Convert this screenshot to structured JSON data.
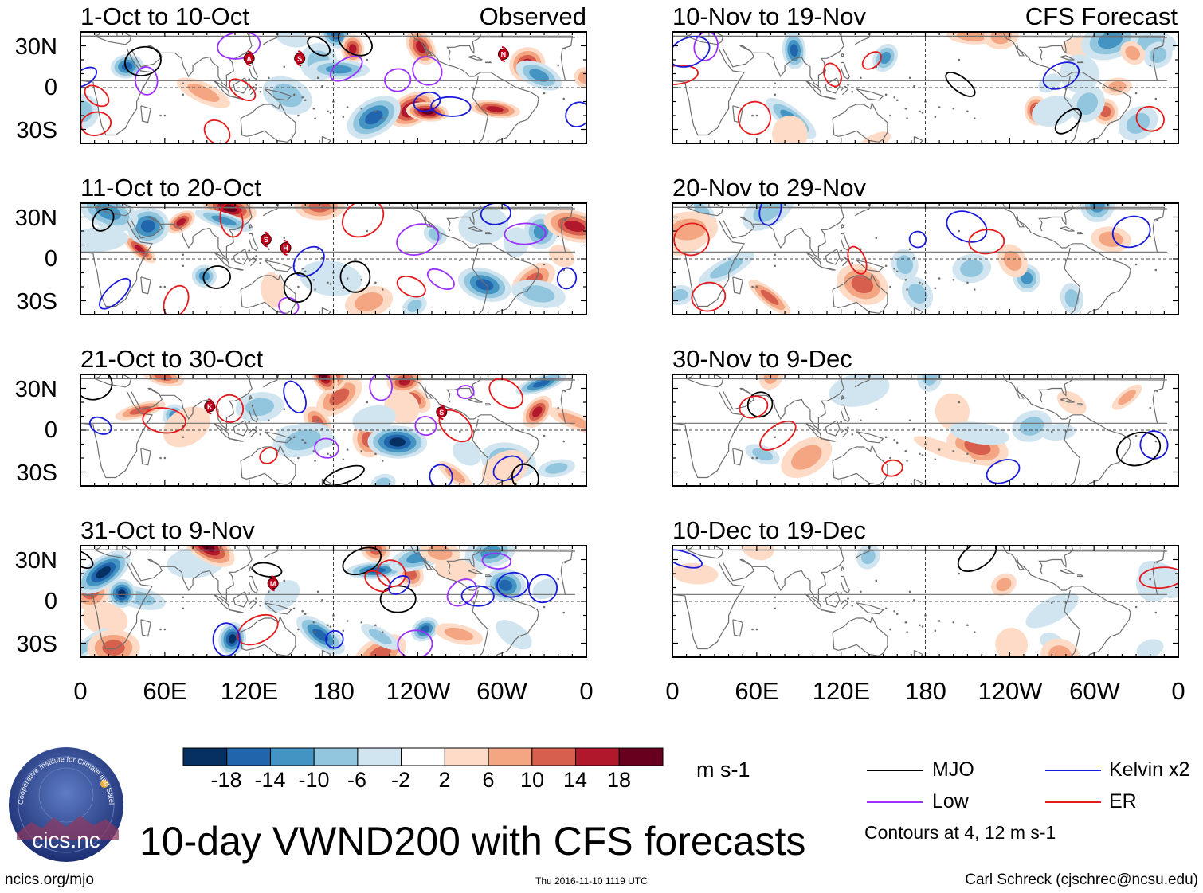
{
  "header": {
    "left_label": "Observed",
    "right_label": "CFS Forecast"
  },
  "chart_data": {
    "type": "heatmap",
    "title": "10-day VWND200 with CFS forecasts",
    "variable": "VWND200",
    "units": "m s-1",
    "colorbar": {
      "ticks": [
        "-18",
        "-14",
        "-10",
        "-6",
        "-2",
        "2",
        "6",
        "10",
        "14",
        "18"
      ],
      "colors": [
        "#053061",
        "#2166ac",
        "#4393c3",
        "#92c5de",
        "#d1e5f0",
        "#ffffff",
        "#fddbc7",
        "#f4a582",
        "#d6604d",
        "#b2182b",
        "#67001f"
      ]
    },
    "lat_ticks": [
      "30N",
      "0",
      "30S"
    ],
    "lon_ticks": [
      "0",
      "60E",
      "120E",
      "180",
      "120W",
      "60W",
      "0"
    ],
    "lat_range": [
      -40,
      40
    ],
    "lon_range": [
      0,
      360
    ],
    "panels": [
      {
        "period": "1-Oct to 10-Oct",
        "type": "Observed",
        "storms": [
          {
            "label": "A",
            "lon": 120,
            "lat": 21
          },
          {
            "label": "S",
            "lon": 156,
            "lat": 21
          },
          {
            "label": "N",
            "lon": 301,
            "lat": 24
          }
        ]
      },
      {
        "period": "11-Oct to 20-Oct",
        "type": "Observed",
        "storms": [
          {
            "label": "S",
            "lon": 132,
            "lat": 14
          },
          {
            "label": "H",
            "lon": 146,
            "lat": 8
          }
        ]
      },
      {
        "period": "21-Oct to 30-Oct",
        "type": "Observed",
        "storms": [
          {
            "label": "K",
            "lon": 92,
            "lat": 17
          },
          {
            "label": "S",
            "lon": 257,
            "lat": 13
          }
        ]
      },
      {
        "period": "31-Oct to 9-Nov",
        "type": "Observed",
        "storms": [
          {
            "label": "M",
            "lon": 137,
            "lat": 13
          }
        ]
      },
      {
        "period": "10-Nov to 19-Nov",
        "type": "CFS Forecast",
        "storms": []
      },
      {
        "period": "20-Nov to 29-Nov",
        "type": "CFS Forecast",
        "storms": []
      },
      {
        "period": "30-Nov to 9-Dec",
        "type": "CFS Forecast",
        "storms": []
      },
      {
        "period": "10-Dec to 19-Dec",
        "type": "CFS Forecast",
        "storms": []
      }
    ],
    "contour_legend": [
      {
        "name": "MJO",
        "color": "#000000"
      },
      {
        "name": "Kelvin x2",
        "color": "#1a1adb"
      },
      {
        "name": "Low",
        "color": "#9b30ff"
      },
      {
        "name": "ER",
        "color": "#e41a1c"
      }
    ],
    "contour_note": "Contours at 4, 12 m s-1"
  },
  "footer": {
    "logo_text": "cics.nc",
    "logo_ring_text": "Cooperative Institute for Climate and Satellites",
    "url": "ncics.org/mjo",
    "timestamp": "Thu 2016-11-10 1119 UTC",
    "author": "Carl Schreck (cjschrec@ncsu.edu)"
  }
}
